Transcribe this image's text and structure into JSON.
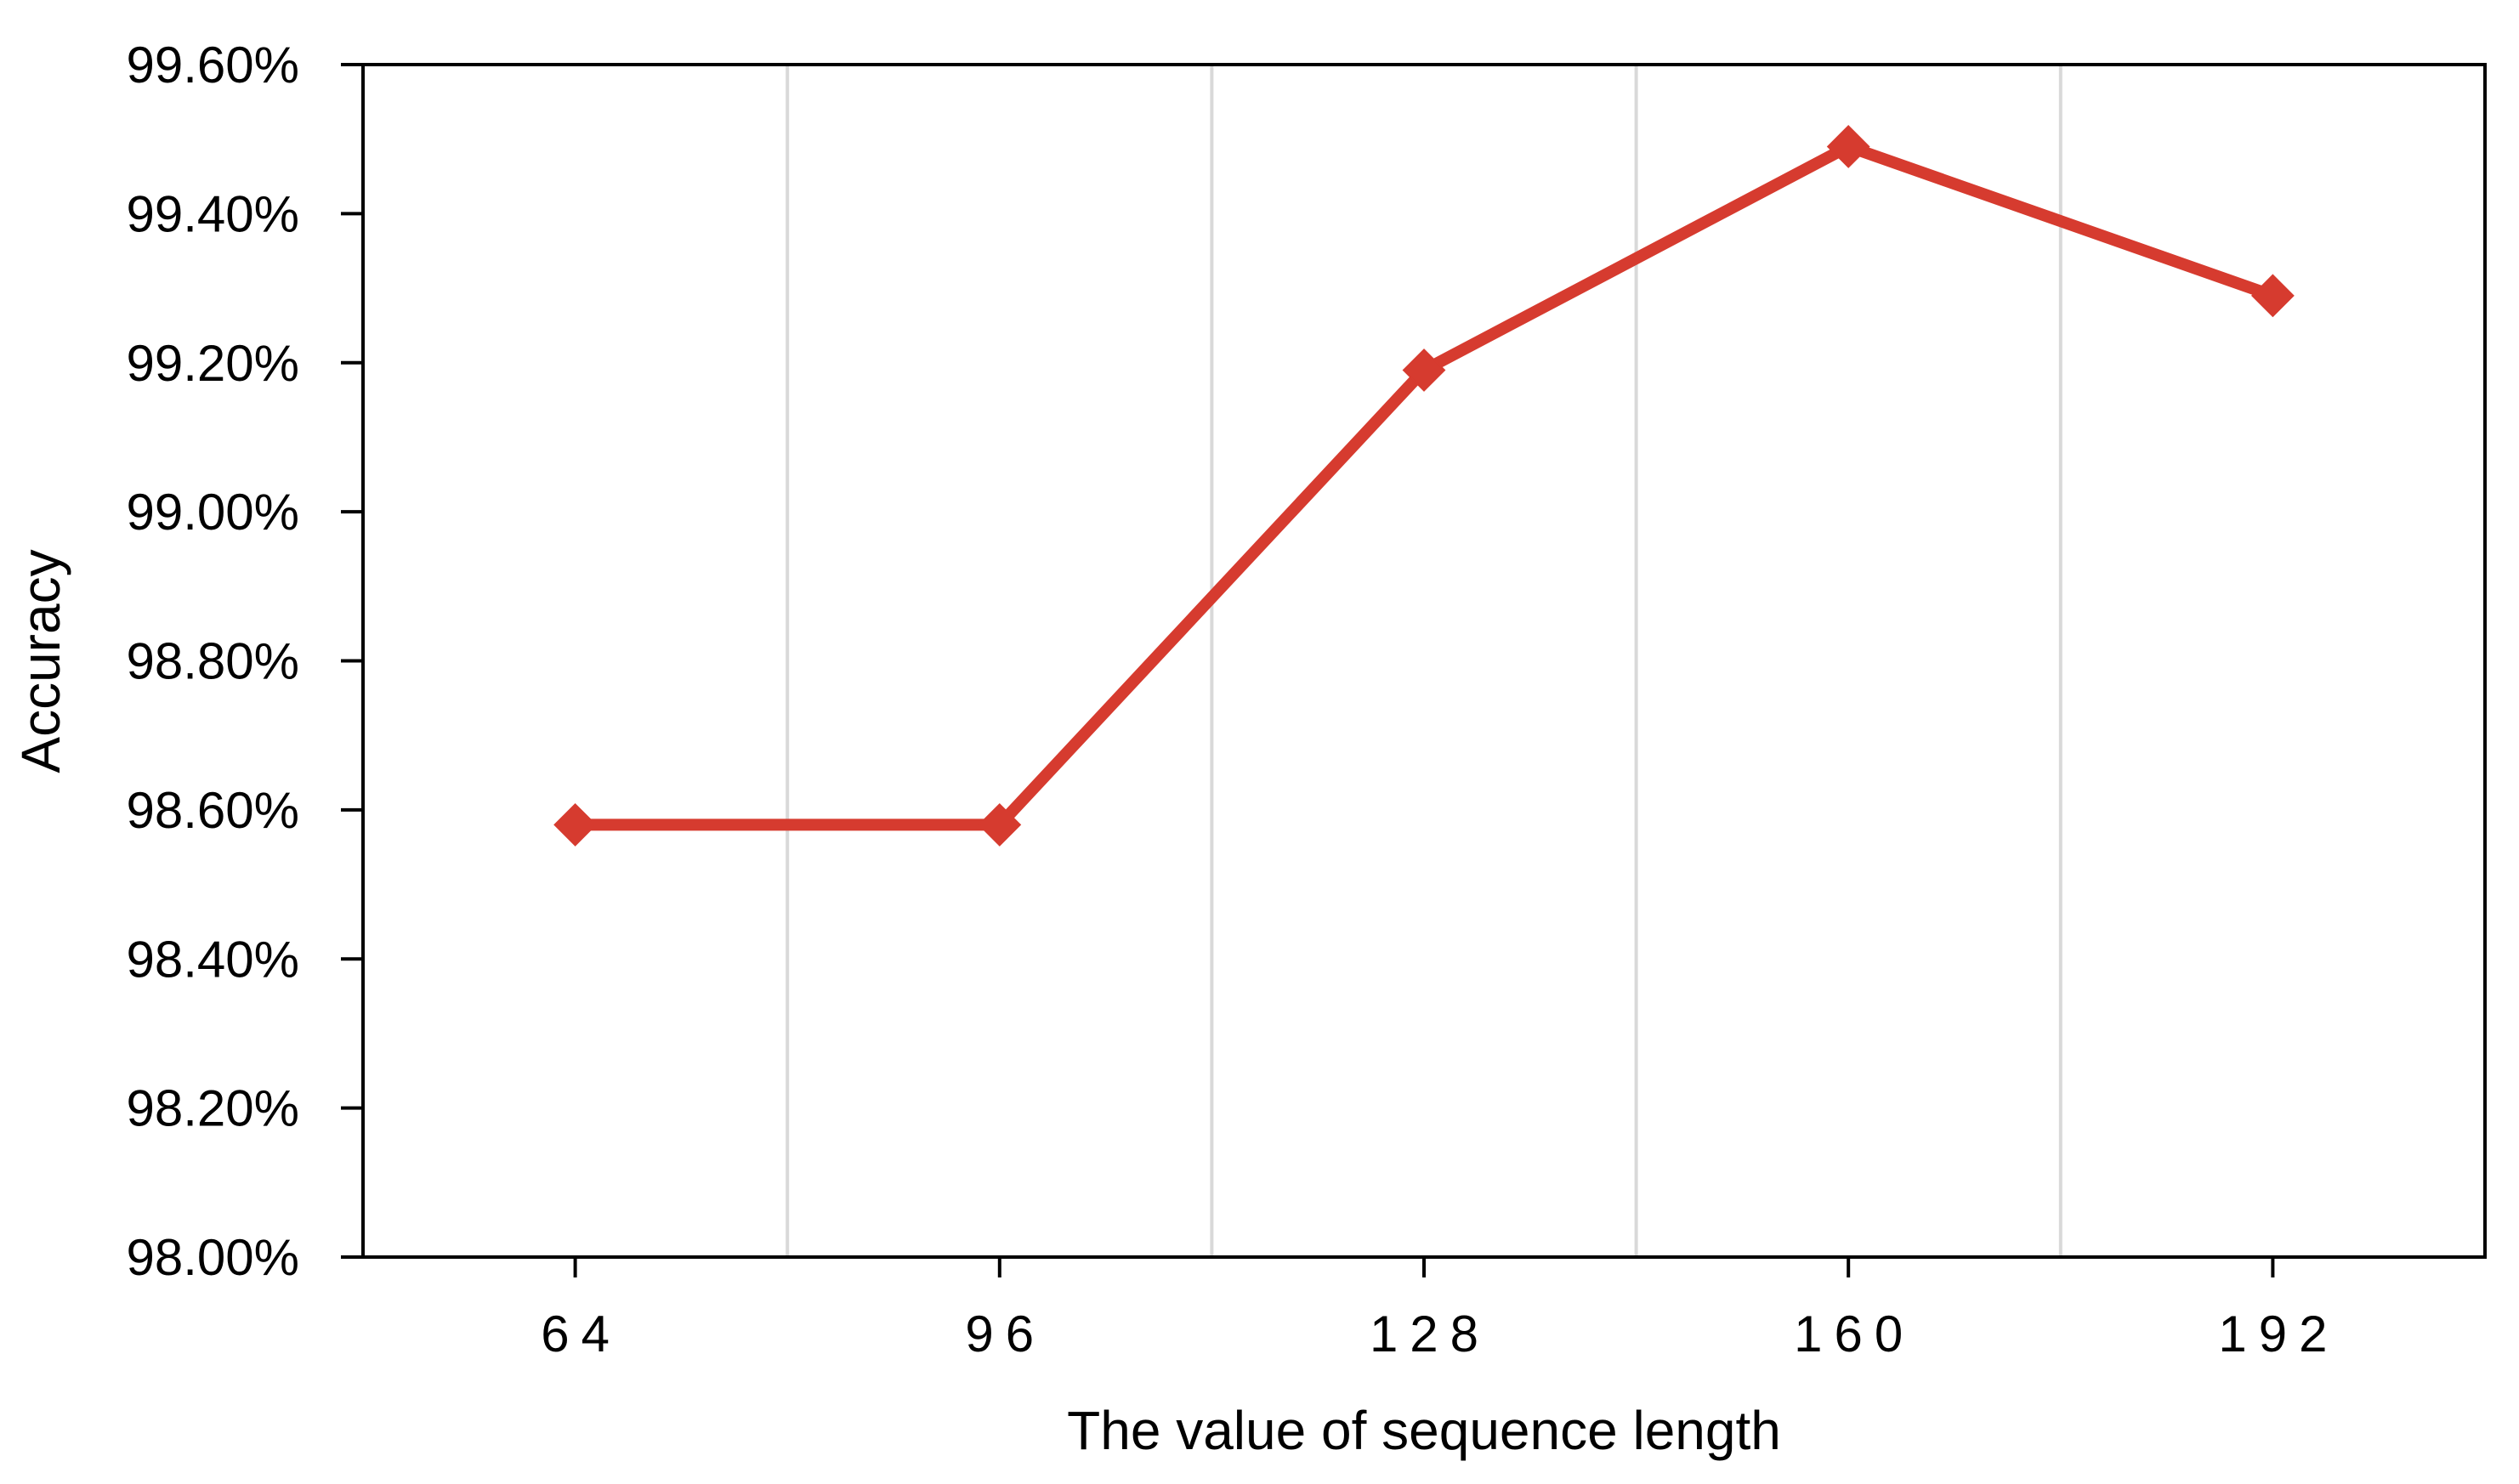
{
  "chart_data": {
    "type": "line",
    "title": "",
    "xlabel": "The value of sequence length",
    "ylabel": "Accuracy",
    "categories": [
      "64",
      "96",
      "128",
      "160",
      "192"
    ],
    "series": [
      {
        "values": [
          0.9858,
          0.9858,
          0.9919,
          0.9949,
          0.9929
        ],
        "color": "#d63b2f",
        "marker": "diamond"
      }
    ],
    "ylim": [
      0.98,
      0.996
    ],
    "yticks": [
      0.98,
      0.982,
      0.984,
      0.986,
      0.988,
      0.99,
      0.992,
      0.994,
      0.996
    ],
    "ytick_labels": [
      "98.00%",
      "98.20%",
      "98.40%",
      "98.60%",
      "98.80%",
      "99.00%",
      "99.20%",
      "99.40%",
      "99.60%"
    ],
    "grid": "vertical-between-categories",
    "legend": "none"
  }
}
